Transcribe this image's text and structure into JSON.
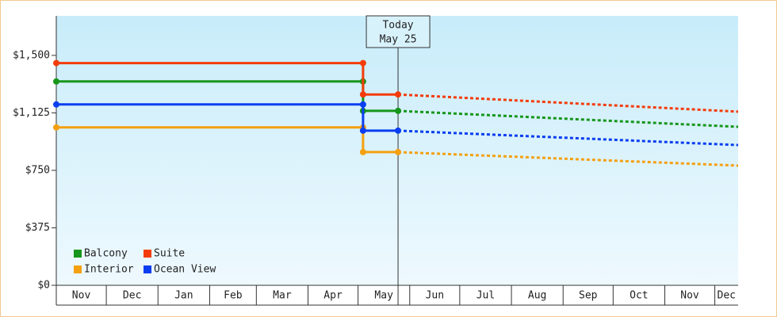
{
  "chart_data": {
    "type": "line",
    "ylim": [
      0,
      1758
    ],
    "yticks": [
      {
        "value": 0,
        "label": "$0"
      },
      {
        "value": 375,
        "label": "$375"
      },
      {
        "value": 750,
        "label": "$750"
      },
      {
        "value": 1125,
        "label": "$1,125"
      },
      {
        "value": 1500,
        "label": "$1,500"
      }
    ],
    "xlim": [
      0,
      409
    ],
    "xticks": [
      {
        "value": 0,
        "label": "Nov"
      },
      {
        "value": 30,
        "label": "Dec"
      },
      {
        "value": 61,
        "label": "Jan"
      },
      {
        "value": 92,
        "label": "Feb"
      },
      {
        "value": 120,
        "label": "Mar"
      },
      {
        "value": 151,
        "label": "Apr"
      },
      {
        "value": 181,
        "label": "May"
      },
      {
        "value": 212,
        "label": "Jun"
      },
      {
        "value": 242,
        "label": "Jul"
      },
      {
        "value": 273,
        "label": "Aug"
      },
      {
        "value": 304,
        "label": "Sep"
      },
      {
        "value": 334,
        "label": "Oct"
      },
      {
        "value": 365,
        "label": "Nov"
      },
      {
        "value": 395,
        "label": "Dec"
      }
    ],
    "annotation": {
      "x": 205,
      "lines": [
        "Today",
        "May 25"
      ]
    },
    "x": [
      0,
      184,
      184,
      205
    ],
    "forecast_x": [
      205,
      409
    ],
    "series": [
      {
        "name": "Balcony",
        "color": "#16961a",
        "values": [
          1330,
          1330,
          1138,
          1138
        ],
        "forecast_values": [
          1138,
          1034
        ]
      },
      {
        "name": "Suite",
        "color": "#f43c0a",
        "values": [
          1450,
          1450,
          1245,
          1245
        ],
        "forecast_values": [
          1245,
          1133
        ]
      },
      {
        "name": "Interior",
        "color": "#f4a010",
        "values": [
          1030,
          1030,
          869,
          869
        ],
        "forecast_values": [
          869,
          781
        ]
      },
      {
        "name": "Ocean View",
        "color": "#0a3ef0",
        "values": [
          1180,
          1180,
          1009,
          1009
        ],
        "forecast_values": [
          1009,
          915
        ]
      }
    ]
  }
}
